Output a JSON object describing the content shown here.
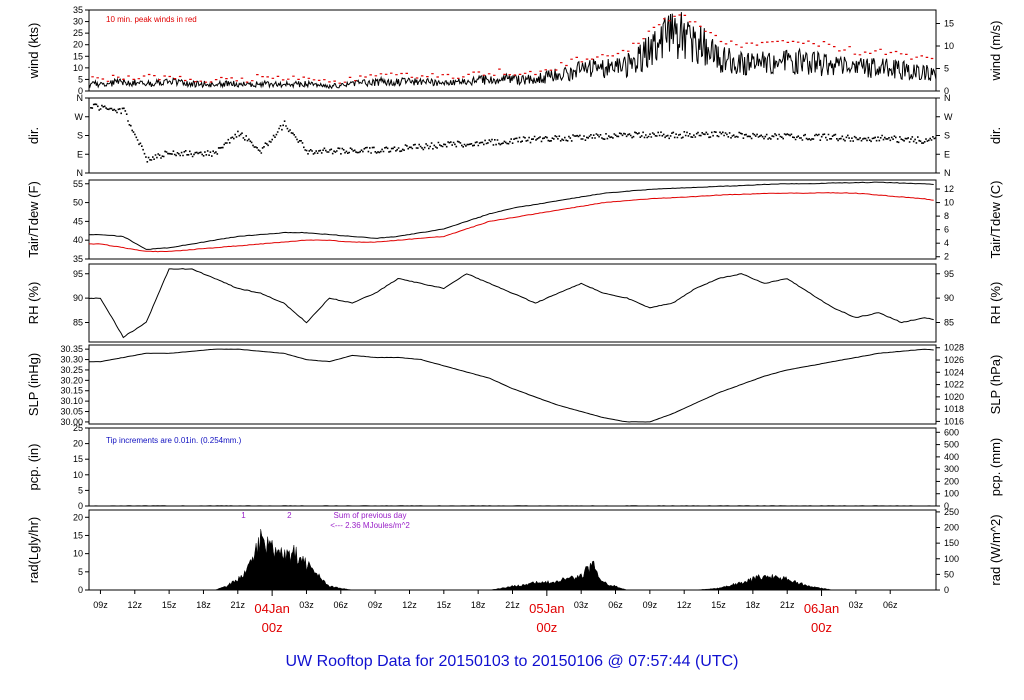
{
  "footer": {
    "prefix": "UW Rooftop Data for",
    "start": "20150103",
    "to": "to",
    "end": "20150106",
    "at": "@",
    "time": "07:57:44",
    "tz": "(UTC)"
  },
  "colors": {
    "obs": "#000000",
    "peak": "#e00000",
    "note_blue": "#1010c0",
    "note_purple": "#9a20c8"
  },
  "chart_data": [
    {
      "id": "wind",
      "type": "line",
      "ylabel_left": "wind (kts)",
      "ylabel_right": "wind (m/s)",
      "ylim": [
        0,
        35
      ],
      "yticks": [
        0,
        5,
        10,
        15,
        20,
        25,
        30,
        35
      ],
      "right_ticks": [
        0,
        5,
        10,
        15
      ],
      "right_factor": 1.944,
      "annotation": "10 min. peak winds in red",
      "series": [
        {
          "name": "wind speed",
          "color": "#000000",
          "x": [
            -2,
            0,
            2,
            4,
            6,
            8,
            10,
            12,
            14,
            16,
            18,
            20,
            22,
            24,
            26,
            28,
            30,
            32,
            34,
            36,
            38,
            40,
            42,
            44,
            46,
            48,
            50,
            52,
            54,
            56,
            58,
            60,
            62,
            64,
            66,
            68,
            70,
            72
          ],
          "values": [
            3,
            4,
            3,
            4,
            3,
            3,
            3,
            3,
            3,
            3,
            2,
            3,
            4,
            4,
            4,
            4,
            4,
            5,
            5,
            5,
            7,
            9,
            10,
            11,
            17,
            25,
            22,
            14,
            12,
            12,
            13,
            12,
            11,
            10,
            10,
            9,
            8,
            6
          ]
        },
        {
          "name": "10 min. peak winds",
          "color": "#e00000",
          "x": [
            -2,
            0,
            2,
            4,
            6,
            8,
            10,
            12,
            14,
            16,
            18,
            20,
            22,
            24,
            26,
            28,
            30,
            32,
            34,
            36,
            38,
            40,
            42,
            44,
            46,
            48,
            50,
            52,
            54,
            56,
            58,
            60,
            62,
            64,
            66,
            68,
            70,
            72
          ],
          "values": [
            5,
            6,
            6,
            6,
            5,
            5,
            5,
            6,
            6,
            5,
            4,
            5,
            6,
            7,
            7,
            7,
            7,
            8,
            8,
            8,
            11,
            14,
            16,
            18,
            26,
            33,
            30,
            22,
            20,
            21,
            22,
            21,
            19,
            17,
            17,
            15,
            14,
            11
          ]
        }
      ]
    },
    {
      "id": "dir",
      "type": "scatter",
      "ylabel_left": "dir.",
      "ylabel_right": "dir.",
      "ylim": [
        0,
        360
      ],
      "yticks": [
        0,
        90,
        180,
        270,
        360
      ],
      "categories": [
        "N",
        "E",
        "S",
        "W",
        "N"
      ],
      "series": [
        {
          "name": "wind direction",
          "color": "#000000",
          "x": [
            -2,
            0,
            2,
            4,
            6,
            8,
            10,
            12,
            14,
            16,
            18,
            20,
            22,
            24,
            26,
            28,
            30,
            32,
            34,
            36,
            38,
            40,
            42,
            44,
            46,
            48,
            50,
            52,
            54,
            56,
            58,
            60,
            62,
            64,
            66,
            68,
            70,
            72
          ],
          "values": [
            320,
            300,
            70,
            100,
            95,
            100,
            200,
            110,
            240,
            110,
            110,
            110,
            115,
            120,
            130,
            140,
            145,
            150,
            160,
            165,
            170,
            175,
            180,
            185,
            185,
            185,
            190,
            190,
            185,
            180,
            180,
            175,
            175,
            170,
            170,
            165,
            160,
            170
          ]
        }
      ]
    },
    {
      "id": "temp",
      "type": "line",
      "ylabel_left": "Tair/Tdew (F)",
      "ylabel_right": "Tair/Tdew (C)",
      "ylim": [
        35,
        56
      ],
      "yticks": [
        35,
        40,
        45,
        50,
        55
      ],
      "right_ticks": [
        2,
        4,
        6,
        8,
        10,
        12
      ],
      "series": [
        {
          "name": "Tair",
          "color": "#000000",
          "x": [
            -2,
            0,
            2,
            4,
            6,
            8,
            10,
            12,
            14,
            16,
            18,
            20,
            22,
            24,
            26,
            28,
            30,
            32,
            34,
            36,
            38,
            40,
            42,
            44,
            46,
            48,
            50,
            52,
            54,
            56,
            58,
            60,
            62,
            64,
            66,
            68,
            70,
            72
          ],
          "values": [
            41.5,
            41,
            37.5,
            38,
            39,
            40,
            41,
            41.5,
            42,
            42,
            41.5,
            41,
            40.5,
            41,
            42,
            43,
            45,
            47,
            48.5,
            49.5,
            50.5,
            51.5,
            52.5,
            53,
            53.5,
            53.8,
            54,
            54.3,
            54.5,
            54.8,
            55,
            55,
            55.2,
            55.3,
            55.4,
            55.2,
            55,
            54.5
          ]
        },
        {
          "name": "Tdew",
          "color": "#e00000",
          "x": [
            -2,
            0,
            2,
            4,
            6,
            8,
            10,
            12,
            14,
            16,
            18,
            20,
            22,
            24,
            26,
            28,
            30,
            32,
            34,
            36,
            38,
            40,
            42,
            44,
            46,
            48,
            50,
            52,
            54,
            56,
            58,
            60,
            62,
            64,
            66,
            68,
            70,
            72
          ],
          "values": [
            39,
            38,
            37,
            37,
            37.5,
            38,
            38.5,
            39,
            39.5,
            40,
            40,
            39.5,
            39.5,
            40,
            40.5,
            41,
            43,
            45,
            46,
            47,
            48,
            49,
            50,
            50.5,
            51,
            51.3,
            51.6,
            52,
            52.2,
            52.4,
            52.5,
            52.5,
            52.6,
            52.5,
            52,
            51.5,
            51,
            50
          ]
        }
      ]
    },
    {
      "id": "rh",
      "type": "line",
      "ylabel_left": "RH (%)",
      "ylabel_right": "RH (%)",
      "ylim": [
        81,
        97
      ],
      "yticks": [
        85,
        90,
        95
      ],
      "series": [
        {
          "name": "RH",
          "color": "#000000",
          "x": [
            -2,
            0,
            2,
            4,
            6,
            8,
            10,
            12,
            14,
            16,
            18,
            20,
            22,
            24,
            26,
            28,
            30,
            32,
            34,
            36,
            38,
            40,
            42,
            44,
            46,
            48,
            50,
            52,
            54,
            56,
            58,
            60,
            62,
            64,
            66,
            68,
            70,
            72
          ],
          "values": [
            90,
            82,
            85,
            96,
            96,
            94,
            92,
            91,
            89,
            85,
            90,
            89,
            91,
            94,
            93,
            92,
            95,
            93,
            91,
            89,
            91,
            93,
            91,
            90,
            88,
            89,
            92,
            94,
            95,
            93,
            94,
            91,
            88,
            86,
            87,
            85,
            86,
            85
          ]
        }
      ]
    },
    {
      "id": "slp",
      "type": "line",
      "ylabel_left": "SLP (inHg)",
      "ylabel_right": "SLP (hPa)",
      "ylim": [
        29.99,
        30.37
      ],
      "yticks": [
        30.0,
        30.05,
        30.1,
        30.15,
        30.2,
        30.25,
        30.3,
        30.35
      ],
      "right_ticks": [
        1016,
        1018,
        1020,
        1022,
        1024,
        1026,
        1028
      ],
      "series": [
        {
          "name": "SLP",
          "color": "#000000",
          "x": [
            -2,
            0,
            2,
            4,
            6,
            8,
            10,
            12,
            14,
            16,
            18,
            20,
            22,
            24,
            26,
            28,
            30,
            32,
            34,
            36,
            38,
            40,
            42,
            44,
            46,
            48,
            50,
            52,
            54,
            56,
            58,
            60,
            62,
            64,
            66,
            68,
            70,
            72
          ],
          "values": [
            30.29,
            30.31,
            30.33,
            30.33,
            30.34,
            30.35,
            30.35,
            30.34,
            30.33,
            30.3,
            30.29,
            30.32,
            30.31,
            30.31,
            30.3,
            30.27,
            30.24,
            30.21,
            30.16,
            30.12,
            30.08,
            30.05,
            30.02,
            30.0,
            30.0,
            30.04,
            30.09,
            30.14,
            30.18,
            30.22,
            30.25,
            30.27,
            30.29,
            30.31,
            30.33,
            30.34,
            30.35,
            30.34
          ]
        }
      ]
    },
    {
      "id": "pcp",
      "type": "line",
      "ylabel_left": "pcp. (in)",
      "ylabel_right": "pcp. (mm)",
      "ylim": [
        0,
        25
      ],
      "yticks": [
        0,
        5,
        10,
        15,
        20,
        25
      ],
      "right_ticks": [
        0,
        100,
        200,
        300,
        400,
        500,
        600
      ],
      "annotation": "Tip increments are 0.01in. (0.254mm.)",
      "series": [
        {
          "name": "precip",
          "color": "#000000",
          "x": [
            -2,
            72
          ],
          "values": [
            0,
            0
          ]
        }
      ]
    },
    {
      "id": "rad",
      "type": "area",
      "ylabel_left": "rad(Lgly/hr)",
      "ylabel_right": "rad (W/m^2)",
      "ylim": [
        0,
        22
      ],
      "yticks": [
        0,
        5,
        10,
        15,
        20
      ],
      "right_ticks": [
        0,
        50,
        100,
        150,
        200,
        250
      ],
      "annotation": "Sum of previous day",
      "annotation2": "<--- 2.36 MJoules/m^2",
      "marks": [
        "1",
        "2"
      ],
      "series": [
        {
          "name": "solar radiation",
          "color": "#000000",
          "x": [
            8,
            9,
            10,
            11,
            12,
            13,
            14,
            15,
            16,
            17,
            18,
            20,
            22,
            32,
            34,
            36,
            38,
            40,
            41,
            42,
            44,
            50,
            52,
            54,
            56,
            58,
            60,
            62
          ],
          "values": [
            0,
            1,
            3,
            6,
            14,
            11,
            9,
            10,
            7,
            4,
            1,
            0,
            0,
            0,
            1,
            2,
            2.5,
            4,
            7,
            2,
            0,
            0,
            0.5,
            2,
            4,
            3,
            1,
            0
          ]
        }
      ]
    }
  ],
  "x_axis": {
    "ticks": [
      {
        "h": -2,
        "label": "09z"
      },
      {
        "h": 1,
        "label": "12z"
      },
      {
        "h": 4,
        "label": "15z"
      },
      {
        "h": 7,
        "label": "18z"
      },
      {
        "h": 10,
        "label": "21z"
      },
      {
        "h": 16,
        "label": "03z"
      },
      {
        "h": 19,
        "label": "06z"
      },
      {
        "h": 22,
        "label": "09z"
      },
      {
        "h": 25,
        "label": "12z"
      },
      {
        "h": 28,
        "label": "15z"
      },
      {
        "h": 31,
        "label": "18z"
      },
      {
        "h": 34,
        "label": "21z"
      },
      {
        "h": 40,
        "label": "03z"
      },
      {
        "h": 43,
        "label": "06z"
      },
      {
        "h": 46,
        "label": "09z"
      },
      {
        "h": 49,
        "label": "12z"
      },
      {
        "h": 52,
        "label": "15z"
      },
      {
        "h": 55,
        "label": "18z"
      },
      {
        "h": 58,
        "label": "21z"
      },
      {
        "h": 64,
        "label": "03z"
      },
      {
        "h": 67,
        "label": "06z"
      }
    ],
    "day_labels": [
      {
        "h": -12,
        "day": "Jan",
        "time": "z"
      },
      {
        "h": 13,
        "day": "04Jan",
        "time": "00z"
      },
      {
        "h": 37,
        "day": "05Jan",
        "time": "00z"
      },
      {
        "h": 61,
        "day": "06Jan",
        "time": "00z"
      }
    ]
  }
}
